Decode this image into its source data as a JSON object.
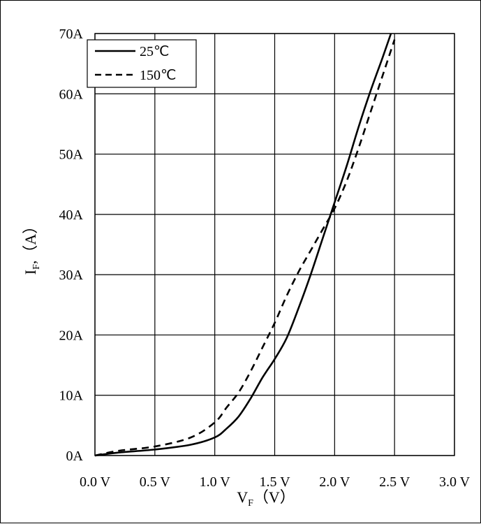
{
  "chart_data": {
    "type": "line",
    "title": "",
    "xlabel": {
      "main": "V",
      "sub": "F",
      "unit": "（V）"
    },
    "ylabel": {
      "main": "I",
      "sub": "F",
      "unit": ",（A）"
    },
    "xlim": [
      0,
      3
    ],
    "ylim": [
      0,
      70
    ],
    "x_ticks": [
      0,
      0.5,
      1,
      1.5,
      2,
      2.5,
      3
    ],
    "x_tick_labels": [
      "0.0 V",
      "0.5 V",
      "1.0 V",
      "1.5 V",
      "2.0 V",
      "2.5 V",
      "3.0 V"
    ],
    "y_ticks": [
      0,
      10,
      20,
      30,
      40,
      50,
      60,
      70
    ],
    "y_tick_labels": [
      "0A",
      "10A",
      "20A",
      "30A",
      "40A",
      "50A",
      "60A",
      "70A"
    ],
    "grid": true,
    "legend_position": "top-left",
    "series": [
      {
        "name": "25℃",
        "style": "solid",
        "color": "#000000",
        "points": [
          [
            0,
            0
          ],
          [
            0.2,
            0.5
          ],
          [
            0.5,
            1
          ],
          [
            0.8,
            1.8
          ],
          [
            1,
            3
          ],
          [
            1.1,
            4.5
          ],
          [
            1.2,
            6.5
          ],
          [
            1.3,
            9.5
          ],
          [
            1.4,
            13
          ],
          [
            1.5,
            16
          ],
          [
            1.6,
            19.5
          ],
          [
            1.7,
            24.5
          ],
          [
            1.8,
            30
          ],
          [
            1.9,
            36
          ],
          [
            2,
            42
          ],
          [
            2.1,
            48
          ],
          [
            2.2,
            54.5
          ],
          [
            2.3,
            60.5
          ],
          [
            2.4,
            66
          ],
          [
            2.47,
            70
          ]
        ]
      },
      {
        "name": "150℃",
        "style": "dashed",
        "color": "#000000",
        "points": [
          [
            0,
            0
          ],
          [
            0.2,
            0.8
          ],
          [
            0.5,
            1.5
          ],
          [
            0.8,
            3
          ],
          [
            1,
            5.5
          ],
          [
            1.1,
            8
          ],
          [
            1.2,
            10.5
          ],
          [
            1.3,
            14
          ],
          [
            1.4,
            18
          ],
          [
            1.5,
            22
          ],
          [
            1.6,
            26.5
          ],
          [
            1.7,
            30.5
          ],
          [
            1.8,
            34
          ],
          [
            1.9,
            37.5
          ],
          [
            2,
            41
          ],
          [
            2.1,
            45.5
          ],
          [
            2.2,
            51
          ],
          [
            2.3,
            57
          ],
          [
            2.4,
            63
          ],
          [
            2.5,
            69
          ]
        ]
      }
    ]
  }
}
